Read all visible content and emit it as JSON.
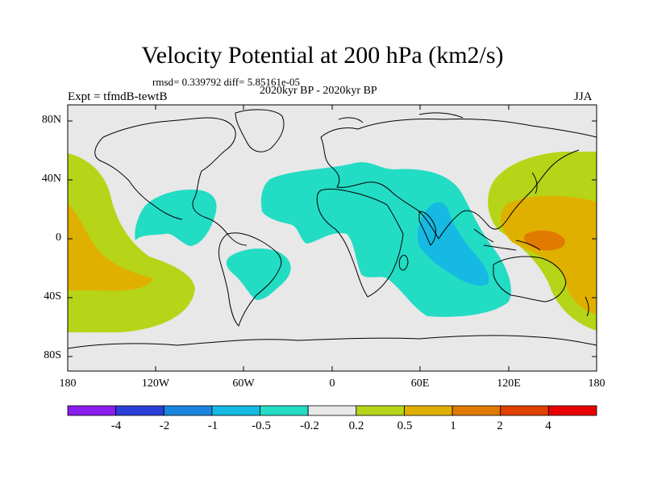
{
  "title": "Velocity Potential at 200 hPa (km2/s)",
  "stats": "rmsd= 0.339792 diff= 5.85161e-05",
  "period": "2020kyr BP - 2020kyr BP",
  "experiment": "Expt = tfmdB-tewtB",
  "season": "JJA",
  "lat_ticks": [
    "80N",
    "40N",
    "0",
    "40S",
    "80S"
  ],
  "lon_ticks": [
    "180",
    "120W",
    "60W",
    "0",
    "60E",
    "120E",
    "180"
  ],
  "colorbar": {
    "labels": [
      "-4",
      "-2",
      "-1",
      "-0.5",
      "-0.2",
      "0.2",
      "0.5",
      "1",
      "2",
      "4"
    ],
    "colors": [
      "#8a1cf0",
      "#2b3fd8",
      "#1a86e0",
      "#15b9e2",
      "#22dcc4",
      "#e8e8e8",
      "#b6d418",
      "#e0b000",
      "#e07a00",
      "#e04000",
      "#e80000"
    ]
  },
  "colors": {
    "background_field": "#e8e8e8",
    "positive_weak": "#b6d418",
    "positive_mid": "#e0b000",
    "positive_strong": "#e07a00",
    "negative_weak": "#22dcc4",
    "negative_mid": "#15b9e2"
  }
}
